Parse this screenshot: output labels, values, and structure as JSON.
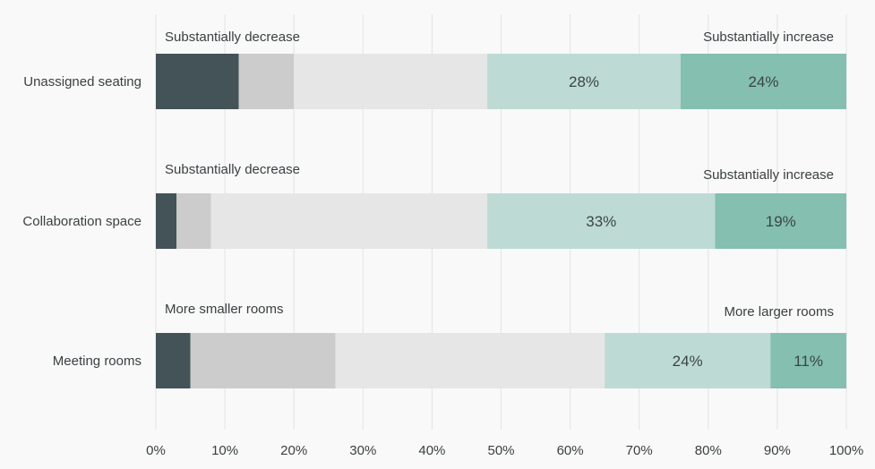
{
  "chart_data": {
    "type": "bar",
    "orientation": "horizontal",
    "stacked": true,
    "xlim": [
      0,
      100
    ],
    "x_ticks": [
      "0%",
      "10%",
      "20%",
      "30%",
      "40%",
      "50%",
      "60%",
      "70%",
      "80%",
      "90%",
      "100%"
    ],
    "grid": true,
    "legend": "none",
    "categories": [
      {
        "label": "Unassigned seating",
        "left_label": "Substantially decrease",
        "right_label": "Substantially increase",
        "values": [
          12,
          8,
          28,
          28,
          24
        ],
        "data_labels": [
          "",
          "",
          "",
          "28%",
          "24%"
        ]
      },
      {
        "label": "Collaboration space",
        "left_label": "Substantially decrease",
        "right_label": "Substantially increase",
        "values": [
          3,
          5,
          40,
          33,
          19
        ],
        "data_labels": [
          "",
          "",
          "",
          "33%",
          "19%"
        ]
      },
      {
        "label": "Meeting rooms",
        "left_label": "More smaller rooms",
        "right_label": "More larger rooms",
        "values": [
          5,
          21,
          39,
          24,
          11
        ],
        "data_labels": [
          "",
          "",
          "",
          "24%",
          "11%"
        ]
      }
    ],
    "colors": [
      "#435358",
      "#cbcccb",
      "#e6e6e6",
      "#bedad4",
      "#84bfb0"
    ]
  }
}
